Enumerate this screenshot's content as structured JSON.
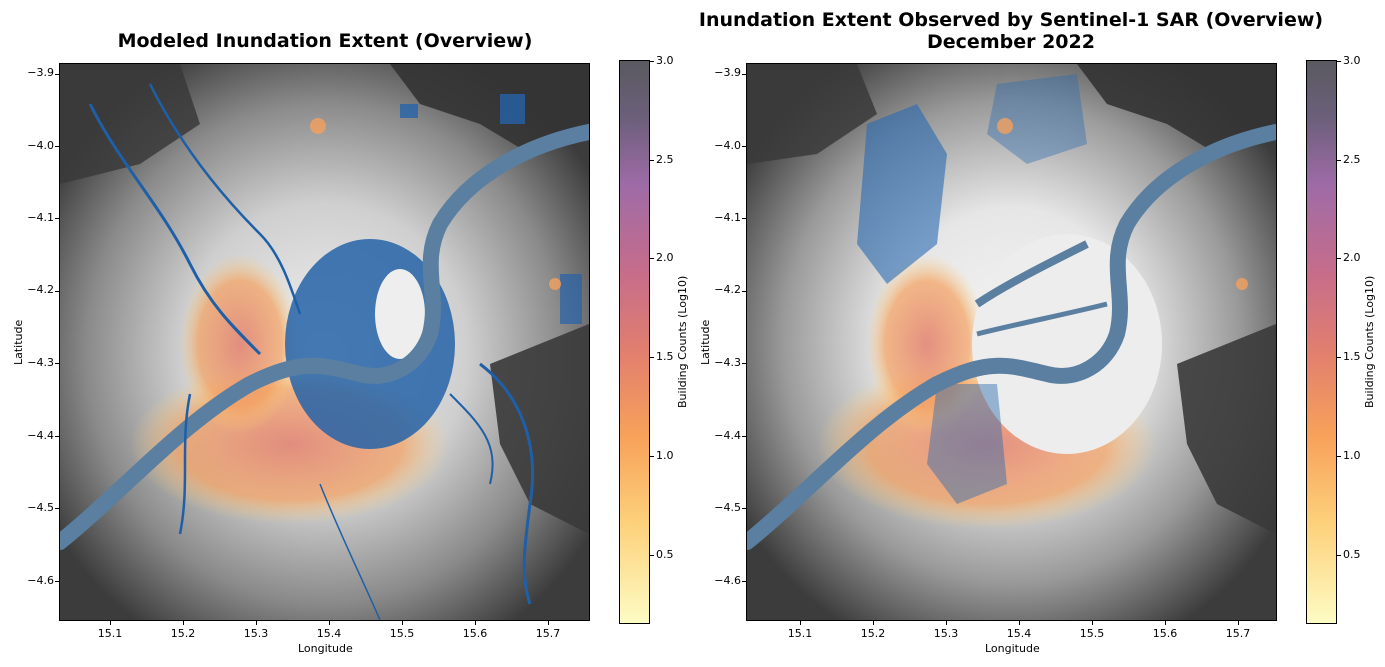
{
  "panels": [
    {
      "title_line1": "Modeled Inundation Extent (Overview)",
      "title_line2": "",
      "xlabel": "Longitude",
      "ylabel": "Latitude",
      "x_ticks": [
        "15.1",
        "15.2",
        "15.3",
        "15.4",
        "15.5",
        "15.6",
        "15.7"
      ],
      "y_ticks": [
        "−3.9",
        "−4.0",
        "−4.1",
        "−4.2",
        "−4.3",
        "−4.4",
        "−4.5",
        "−4.6"
      ],
      "colorbar_label": "Building Counts (Log10)",
      "colorbar_ticks": [
        "3.0",
        "2.5",
        "2.0",
        "1.5",
        "1.0",
        "0.5"
      ]
    },
    {
      "title_line1": "Inundation Extent Observed by Sentinel-1 SAR (Overview)",
      "title_line2": "December 2022",
      "xlabel": "Longitude",
      "ylabel": "Latitude",
      "x_ticks": [
        "15.1",
        "15.2",
        "15.3",
        "15.4",
        "15.5",
        "15.6",
        "15.7"
      ],
      "y_ticks": [
        "−3.9",
        "−4.0",
        "−4.1",
        "−4.2",
        "−4.3",
        "−4.4",
        "−4.5",
        "−4.6"
      ],
      "colorbar_label": "Building Counts (Log10)",
      "colorbar_ticks": [
        "3.0",
        "2.5",
        "2.0",
        "1.5",
        "1.0",
        "0.5"
      ]
    }
  ],
  "colors": {
    "river": "#5b7fa0",
    "flood_model": "#1f5fa8",
    "flood_sar": "#2a6bb0",
    "terrain_dark": "#3a3a3a",
    "terrain_light": "#d8d8d8",
    "buildings_low": "#fdd07a",
    "buildings_high": "#e27f6e"
  }
}
